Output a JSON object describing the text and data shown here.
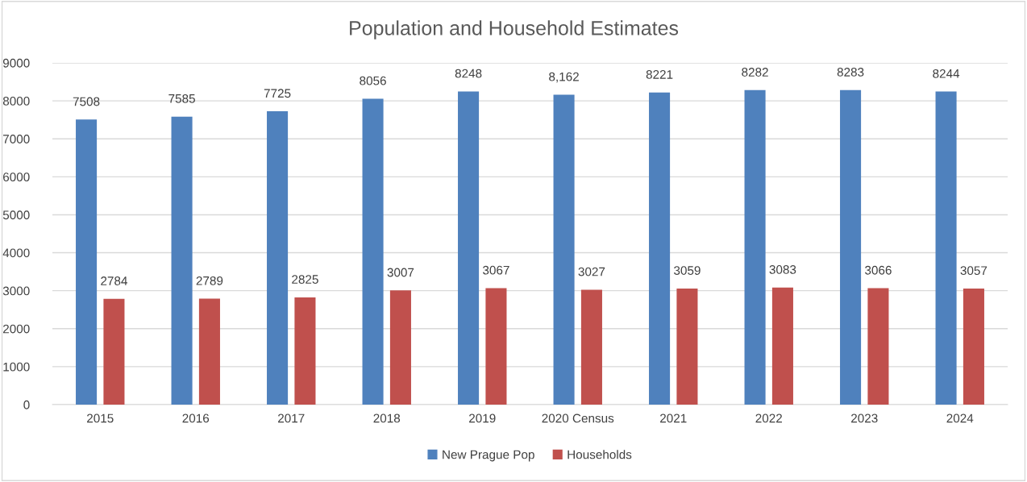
{
  "chart_data": {
    "type": "bar",
    "title": "Population and Household Estimates",
    "categories": [
      "2015",
      "2016",
      "2017",
      "2018",
      "2019",
      "2020 Census",
      "2021",
      "2022",
      "2023",
      "2024"
    ],
    "series": [
      {
        "name": "New Prague Pop",
        "color": "#4f81bd",
        "values": [
          7508,
          7585,
          7725,
          8056,
          8248,
          8162,
          8221,
          8282,
          8283,
          8244
        ],
        "value_labels": [
          "7508",
          "7585",
          "7725",
          "8056",
          "8248",
          "8,162",
          "8221",
          "8282",
          "8283",
          "8244"
        ]
      },
      {
        "name": "Households",
        "color": "#c0504d",
        "values": [
          2784,
          2789,
          2825,
          3007,
          3067,
          3027,
          3059,
          3083,
          3066,
          3057
        ],
        "value_labels": [
          "2784",
          "2789",
          "2825",
          "3007",
          "3067",
          "3027",
          "3059",
          "3083",
          "3066",
          "3057"
        ]
      }
    ],
    "ylim": [
      0,
      9000
    ],
    "yticks": [
      0,
      1000,
      2000,
      3000,
      4000,
      5000,
      6000,
      7000,
      8000,
      9000
    ],
    "grid": "y",
    "legend": "bottom"
  }
}
